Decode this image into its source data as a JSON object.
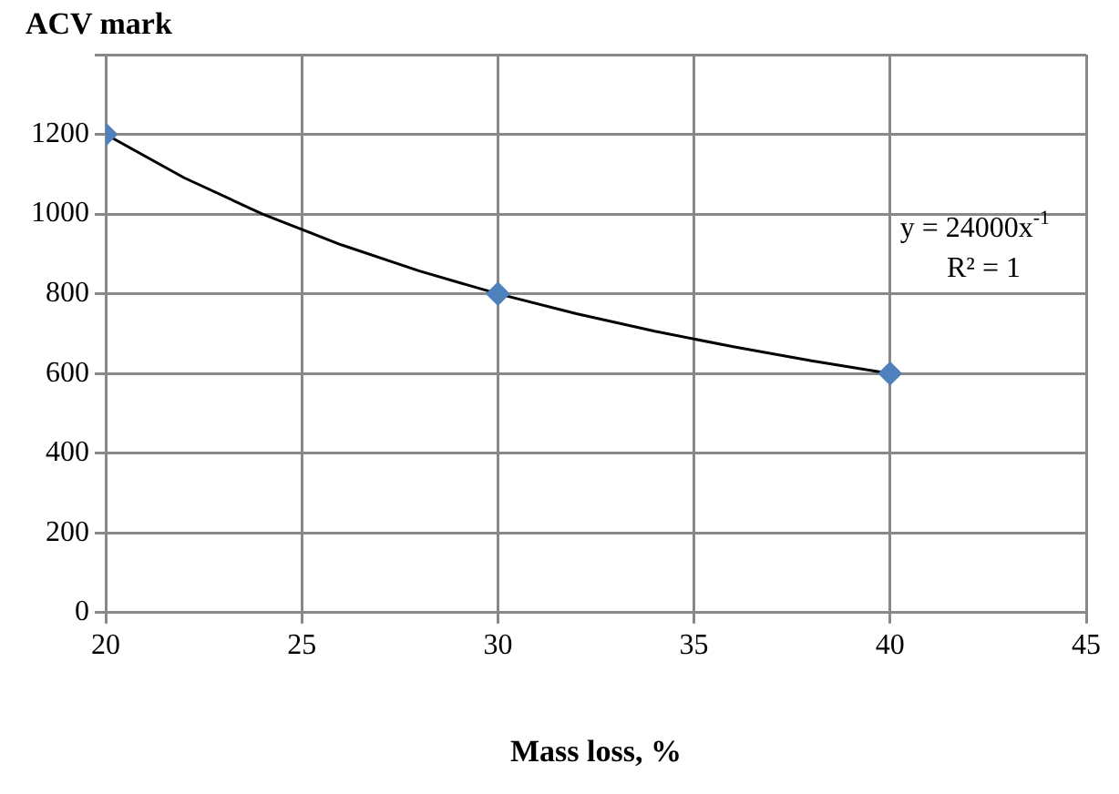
{
  "chart_data": {
    "type": "scatter",
    "xlabel": "Mass loss, %",
    "ylabel": "ACV mark",
    "series": [
      {
        "color": "#4f81bd",
        "x": [
          20,
          30,
          40
        ],
        "values": [
          1200,
          800,
          600
        ],
        "marker": "diamond"
      },
      {
        "type": "line",
        "color": "#000000",
        "x": [
          20,
          22,
          24,
          26,
          28,
          30,
          32,
          34,
          36,
          38,
          40
        ],
        "values": [
          1200,
          1091,
          1000,
          923,
          857,
          800,
          750,
          706,
          667,
          632,
          600
        ],
        "marker": "none"
      }
    ],
    "xlim": [
      20,
      45
    ],
    "xticks": [
      20,
      25,
      30,
      35,
      40,
      45
    ],
    "ylim": [
      0,
      1400
    ],
    "yticks": [
      0,
      200,
      400,
      600,
      800,
      1000,
      1200,
      {
        "value": 1400,
        "label": null
      }
    ],
    "annotations": [
      "y = 24000x$^{-1}$",
      "R² = 1"
    ],
    "grid": true,
    "legend": false
  }
}
